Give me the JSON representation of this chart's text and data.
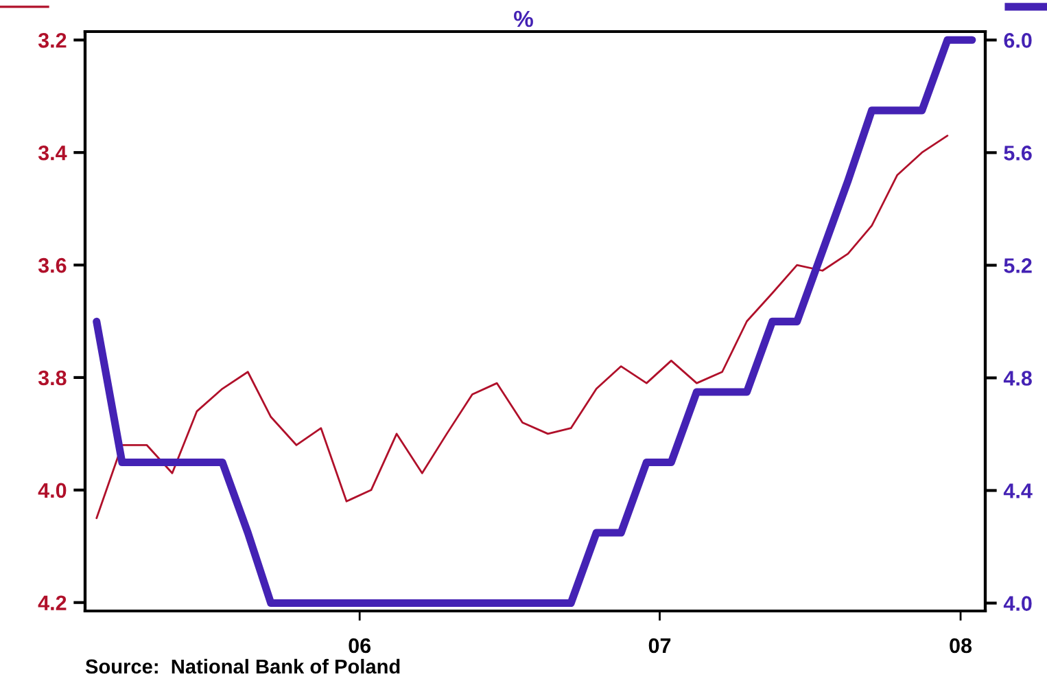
{
  "chart_data": {
    "type": "line",
    "title": "%",
    "x": [
      "2005-08-15",
      "2005-09-15",
      "2005-10-15",
      "2005-11-15",
      "2005-12-15",
      "2006-01-15",
      "2006-02-15",
      "2006-03-15",
      "2006-04-15",
      "2006-05-15",
      "2006-06-15",
      "2006-07-15",
      "2006-08-15",
      "2006-09-15",
      "2006-10-15",
      "2006-11-15",
      "2006-12-15",
      "2007-01-15",
      "2007-02-15",
      "2007-03-15",
      "2007-04-15",
      "2007-05-15",
      "2007-06-15",
      "2007-07-15",
      "2007-08-15",
      "2007-09-15",
      "2007-10-15",
      "2007-11-15",
      "2007-12-15",
      "2008-01-15",
      "2008-02-15",
      "2008-03-15",
      "2008-04-15",
      "2008-05-15",
      "2008-06-15",
      "2008-07-15"
    ],
    "series": [
      {
        "color": "#b0102a",
        "axis": "y",
        "values": [
          4.05,
          3.92,
          3.92,
          3.97,
          3.86,
          3.82,
          3.79,
          3.87,
          3.92,
          3.89,
          4.02,
          4.0,
          3.9,
          3.97,
          3.9,
          3.83,
          3.81,
          3.88,
          3.9,
          3.89,
          3.82,
          3.78,
          3.81,
          3.77,
          3.81,
          3.79,
          3.7,
          3.65,
          3.6,
          3.61,
          3.58,
          3.53,
          3.44,
          3.4,
          3.37,
          null
        ]
      },
      {
        "color": "#4422b4",
        "axis": "y2",
        "values": [
          5.0,
          4.5,
          4.5,
          4.5,
          4.5,
          4.5,
          4.25,
          4.0,
          4.0,
          4.0,
          4.0,
          4.0,
          4.0,
          4.0,
          4.0,
          4.0,
          4.0,
          4.0,
          4.0,
          4.0,
          4.25,
          4.25,
          4.5,
          4.5,
          4.75,
          4.75,
          4.75,
          5.0,
          5.0,
          5.25,
          5.5,
          5.75,
          5.75,
          5.75,
          6.0,
          6.0
        ]
      }
    ],
    "xlim": [
      "2005-08-01",
      "2008-07-31"
    ],
    "xticks": [
      {
        "value": "2006-07-01",
        "label": "06"
      },
      {
        "value": "2007-07-01",
        "label": "07"
      },
      {
        "value": "2008-07-01",
        "label": "08"
      }
    ],
    "ylim": [
      4.215,
      3.185
    ],
    "yticks": [
      {
        "value": 3.2,
        "label": "3.2"
      },
      {
        "value": 3.4,
        "label": "3.4"
      },
      {
        "value": 3.6,
        "label": "3.6"
      },
      {
        "value": 3.8,
        "label": "3.8"
      },
      {
        "value": 4.0,
        "label": "4.0"
      },
      {
        "value": 4.2,
        "label": "4.2"
      }
    ],
    "y2lim": [
      3.972,
      6.03
    ],
    "y2ticks": [
      {
        "value": 4.0,
        "label": "4.0"
      },
      {
        "value": 4.4,
        "label": "4.4"
      },
      {
        "value": 4.8,
        "label": "4.8"
      },
      {
        "value": 5.2,
        "label": "5.2"
      },
      {
        "value": 5.6,
        "label": "5.6"
      },
      {
        "value": 6.0,
        "label": "6.0"
      }
    ],
    "grid": false,
    "legend": false,
    "annotations": [
      "Source:  National Bank of Poland"
    ]
  }
}
